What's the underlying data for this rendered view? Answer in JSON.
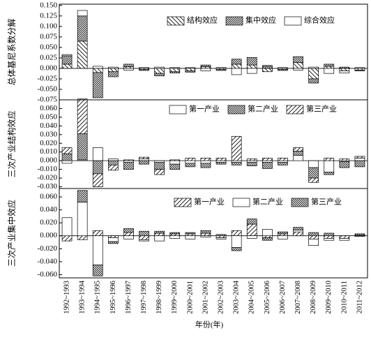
{
  "chart_data": [
    {
      "type": "bar",
      "stacked": true,
      "ylabel": "总体基尼系数分解",
      "ylim": [
        -0.075,
        0.153
      ],
      "yticks": [
        {
          "value": 0.15,
          "label": "0.150"
        },
        0.125,
        {
          "value": 0.1,
          "label": "0.100"
        },
        0.075,
        {
          "value": 0.05,
          "label": "0.050"
        },
        0.025,
        {
          "value": 0,
          "label": "0.000"
        },
        -0.025,
        {
          "value": -0.05,
          "label": "-0.050"
        },
        -0.075
      ],
      "series": [
        {
          "name": "结构效应",
          "color": "#000000",
          "hatch": "sparse-back",
          "values": [
            0.01,
            0.065,
            -0.01,
            -0.008,
            0.004,
            -0.003,
            -0.012,
            -0.008,
            -0.006,
            0.004,
            -0.003,
            0.01,
            0.008,
            -0.008,
            -0.003,
            0.014,
            -0.025,
            0.005,
            -0.006,
            -0.004
          ]
        },
        {
          "name": "集中效应",
          "color": "#000000",
          "hatch": "dense-forward",
          "values": [
            0.02,
            0.06,
            -0.06,
            -0.012,
            0.006,
            -0.002,
            -0.006,
            -0.003,
            -0.003,
            0.004,
            -0.002,
            0.012,
            0.018,
            0.005,
            -0.002,
            0.014,
            -0.01,
            0.005,
            0.003,
            -0.002
          ]
        },
        {
          "name": "综合效应",
          "color": "#000000",
          "hatch": "none",
          "values": [
            0.003,
            0.013,
            0.005,
            0.003,
            -0.004,
            0.002,
            0.003,
            0.002,
            0.002,
            -0.006,
            0.002,
            -0.015,
            -0.012,
            0.002,
            0.002,
            -0.004,
            0.003,
            -0.012,
            -0.005,
            0.002
          ]
        }
      ]
    },
    {
      "type": "bar",
      "stacked": true,
      "ylabel": "三次产业结构效应",
      "ylim": [
        -0.032,
        0.07
      ],
      "yticks": [
        {
          "value": 0.06,
          "label": "0.060"
        },
        {
          "value": 0.05,
          "label": "0.050"
        },
        {
          "value": 0.04,
          "label": "0.040"
        },
        {
          "value": 0.03,
          "label": "0.030"
        },
        {
          "value": 0.02,
          "label": "0.020"
        },
        {
          "value": 0.01,
          "label": "0.010"
        },
        {
          "value": 0,
          "label": "0.000"
        },
        {
          "value": -0.01,
          "label": "-0.010"
        },
        {
          "value": -0.02,
          "label": "-0.020"
        },
        {
          "value": -0.03,
          "label": "-0.030"
        }
      ],
      "series": [
        {
          "name": "第一产业",
          "color": "#000000",
          "hatch": "none",
          "values": [
            -0.003,
            0.001,
            0.015,
            0.002,
            -0.002,
            0.002,
            -0.002,
            -0.004,
            -0.003,
            -0.003,
            -0.002,
            -0.002,
            -0.002,
            -0.002,
            -0.002,
            0.006,
            -0.008,
            -0.013,
            -0.001,
            0.003
          ]
        },
        {
          "name": "第二产业",
          "color": "#000000",
          "hatch": "dense-back",
          "values": [
            0.008,
            0.03,
            -0.015,
            -0.005,
            -0.008,
            -0.004,
            -0.008,
            -0.006,
            -0.004,
            -0.005,
            -0.002,
            -0.003,
            -0.004,
            -0.007,
            -0.003,
            0.005,
            -0.012,
            -0.003,
            -0.007,
            -0.007
          ]
        },
        {
          "name": "第三产业",
          "color": "#000000",
          "hatch": "sparse-forward",
          "values": [
            0.007,
            0.04,
            -0.015,
            -0.006,
            0.001,
            0.002,
            -0.006,
            0.001,
            0.003,
            0.003,
            0.003,
            0.028,
            0.002,
            0.003,
            0.003,
            0.004,
            -0.005,
            0.003,
            0.002,
            0.002
          ]
        }
      ]
    },
    {
      "type": "bar",
      "stacked": true,
      "ylabel": "三次产业集中效应",
      "xlabel": "年份(年)",
      "categories": [
        "1992~1993",
        "1993~1994",
        "1994~1995",
        "1995~1996",
        "1996~1997",
        "1997~1998",
        "1998~1999",
        "1999~2000",
        "2000~2001",
        "2001~2002",
        "2002~2003",
        "2003~2004",
        "2004~2005",
        "2005~2006",
        "2006~2007",
        "2007~2008",
        "2008~2009",
        "2009~2010",
        "2010~2011",
        "2011~2012"
      ],
      "ylim": [
        -0.065,
        0.073
      ],
      "yticks": [
        {
          "value": 0.06,
          "label": "0.060"
        },
        {
          "value": 0.04,
          "label": "0.040"
        },
        {
          "value": 0.02,
          "label": "0.020"
        },
        {
          "value": 0,
          "label": "0.000"
        },
        {
          "value": -0.02,
          "label": "-0.020"
        },
        {
          "value": -0.04,
          "label": "-0.040"
        },
        {
          "value": -0.06,
          "label": "-0.060"
        }
      ],
      "series": [
        {
          "name": "第一产业",
          "color": "#000000",
          "hatch": "sparse-forward",
          "values": [
            -0.008,
            -0.006,
            0.008,
            -0.003,
            0.005,
            -0.006,
            0.004,
            0.003,
            0.003,
            0.004,
            -0.003,
            0.008,
            0.018,
            -0.003,
            0.003,
            0.006,
            -0.005,
            -0.004,
            -0.004,
            -0.001
          ]
        },
        {
          "name": "第二产业",
          "color": "#000000",
          "hatch": "none",
          "values": [
            0.028,
            0.052,
            -0.045,
            -0.006,
            -0.005,
            -0.002,
            -0.008,
            -0.004,
            -0.005,
            -0.002,
            -0.002,
            -0.018,
            -0.004,
            0.01,
            -0.005,
            0.003,
            -0.01,
            -0.003,
            -0.003,
            0.001
          ]
        },
        {
          "name": "第三产业",
          "color": "#000000",
          "hatch": "dense-back",
          "values": [
            0,
            0.018,
            -0.017,
            -0.003,
            0.006,
            0.007,
            0.003,
            0.002,
            0.002,
            0.004,
            0.002,
            -0.005,
            0.008,
            -0.004,
            0.003,
            0.004,
            0.005,
            0.004,
            0,
            0.002
          ]
        }
      ]
    }
  ]
}
